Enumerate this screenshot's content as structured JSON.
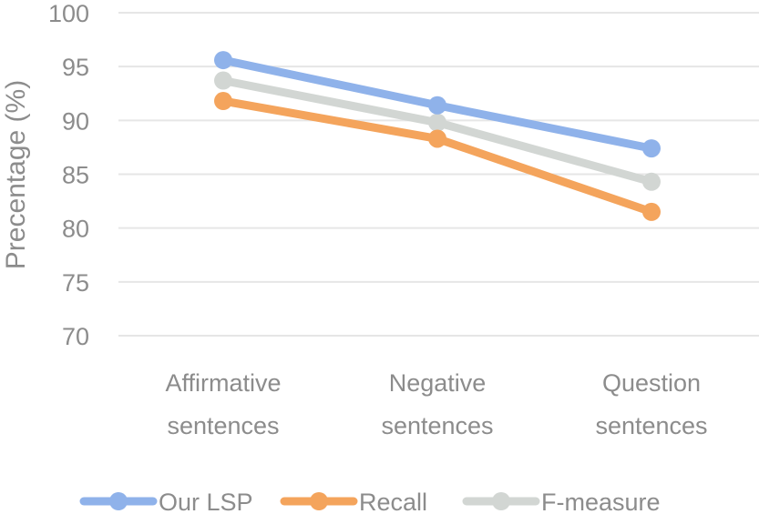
{
  "chart_data": {
    "type": "line",
    "categories": [
      [
        "Affirmative",
        "sentences"
      ],
      [
        "Negative",
        "sentences"
      ],
      [
        "Question",
        "sentences"
      ]
    ],
    "series": [
      {
        "name": "Our LSP",
        "values": [
          95.6,
          91.4,
          87.4
        ],
        "color": "#8fb2ea"
      },
      {
        "name": "Recall",
        "values": [
          91.8,
          88.3,
          81.5
        ],
        "color": "#f4a45c"
      },
      {
        "name": "F-measure",
        "values": [
          93.7,
          89.8,
          84.3
        ],
        "color": "#d2d6d3"
      }
    ],
    "ylabel": "Precentage (%)",
    "ylim": [
      70,
      100
    ],
    "yticks": [
      70,
      75,
      80,
      85,
      90,
      95,
      100
    ],
    "grid": true,
    "legend": "bottom"
  }
}
